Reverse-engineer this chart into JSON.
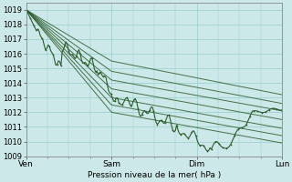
{
  "title": "",
  "xlabel": "Pression niveau de la mer( hPa )",
  "ylabel": "",
  "bg_color": "#cce8e8",
  "grid_color": "#99cccc",
  "line_color": "#2d5c2d",
  "ylim": [
    1009,
    1019.5
  ],
  "xlim": [
    0,
    72
  ],
  "xticks": [
    0,
    24,
    48,
    72
  ],
  "xticklabels": [
    "Ven",
    "Sam",
    "Dim",
    "Lun"
  ],
  "yticks": [
    1009,
    1010,
    1011,
    1012,
    1013,
    1014,
    1015,
    1016,
    1017,
    1018,
    1019
  ],
  "num_points": 200,
  "ensemble_ends": [
    1013.2,
    1012.6,
    1012.1,
    1011.5,
    1010.9,
    1010.4,
    1009.9
  ],
  "ensemble_mids": [
    1015.5,
    1014.8,
    1014.2,
    1013.6,
    1013.0,
    1012.5,
    1012.0
  ]
}
